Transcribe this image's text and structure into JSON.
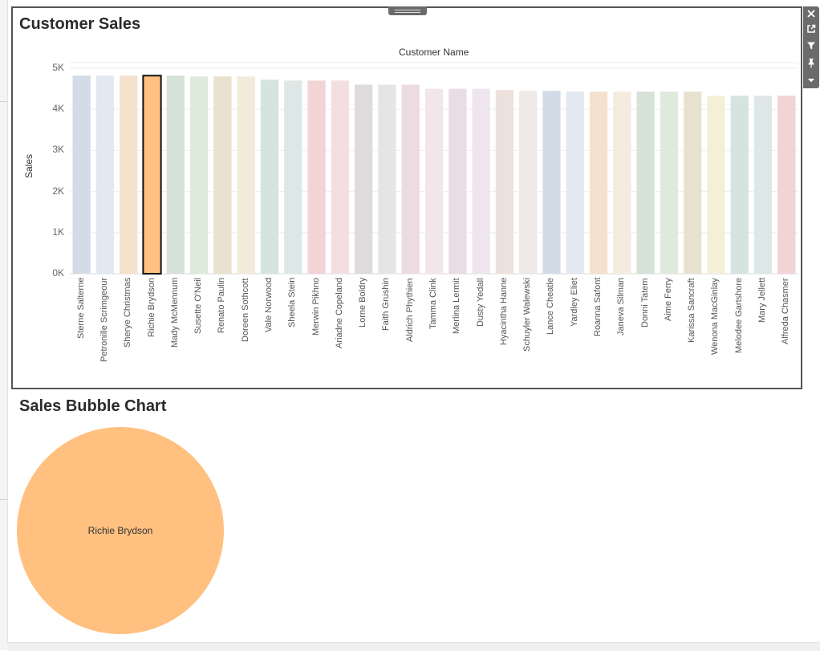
{
  "dashboard": {
    "customer_sales_title": "Customer Sales",
    "bubble_title": "Sales Bubble Chart"
  },
  "toolbar": {
    "icons": [
      "close-icon",
      "external-link-icon",
      "filter-icon",
      "pin-icon",
      "dropdown-arrow-icon"
    ]
  },
  "chart_data": [
    {
      "type": "bar",
      "title": "Customer Sales",
      "top_axis_label": "Customer Name",
      "ylabel": "Sales",
      "ylim": [
        0,
        5000
      ],
      "yticks": [
        "5K",
        "4K",
        "3K",
        "2K",
        "1K",
        "0K"
      ],
      "grid": true,
      "selected": "Richie Brydson",
      "categories": [
        "Sterne Salterne",
        "Petronille Scrimgeour",
        "Sherye Christmas",
        "Richie Brydson",
        "Mady McMennum",
        "Susette O'Neil",
        "Renato Paulin",
        "Doreen Sothcott",
        "Vale Norwood",
        "Sheela Stein",
        "Merwin Pikhno",
        "Ariadne Copeland",
        "Lorne Boldry",
        "Faith Grushin",
        "Aldrich Phythien",
        "Tamma Clink",
        "Merlina Lermit",
        "Dusty Yedall",
        "Hyacintha Hanne",
        "Schuyler Walewski",
        "Lance Cheatle",
        "Yardley Eliet",
        "Roanna Safont",
        "Janeva Silman",
        "Donni Tatem",
        "Aime Ferry",
        "Karissa Sancraft",
        "Wenona MacGinlay",
        "Melodee Gartshore",
        "Mary Jellett",
        "Alfreda Chasmer"
      ],
      "values": [
        4820,
        4820,
        4820,
        4820,
        4820,
        4800,
        4800,
        4800,
        4720,
        4700,
        4700,
        4700,
        4600,
        4600,
        4600,
        4500,
        4500,
        4500,
        4470,
        4450,
        4450,
        4430,
        4430,
        4430,
        4430,
        4430,
        4430,
        4330,
        4330,
        4330,
        4330
      ],
      "colors": [
        "#d3dce6",
        "#e2e9f1",
        "#f4e1cd",
        "#ffc080",
        "#d6e1d8",
        "#deeadb",
        "#e9e1cd",
        "#f3ebd9",
        "#d5e3e1",
        "#dde8e6",
        "#f2d3d6",
        "#f4dfe0",
        "#dddbdb",
        "#e6e5e4",
        "#ecdbe2",
        "#f3e6eb",
        "#e8dde5",
        "#efe5ef",
        "#ece1dd",
        "#efe9e8",
        "#d3dce6",
        "#e2e9f1",
        "#f4e1cd",
        "#f6ebdf",
        "#d6e1d8",
        "#deeadb",
        "#e6e2cf",
        "#f4efd8",
        "#d5e3e1",
        "#dde8e6",
        "#f2d3d6"
      ]
    },
    {
      "type": "bubble",
      "title": "Sales Bubble Chart",
      "bubbles": [
        {
          "name": "Richie Brydson",
          "color": "#ffc080"
        }
      ]
    }
  ]
}
